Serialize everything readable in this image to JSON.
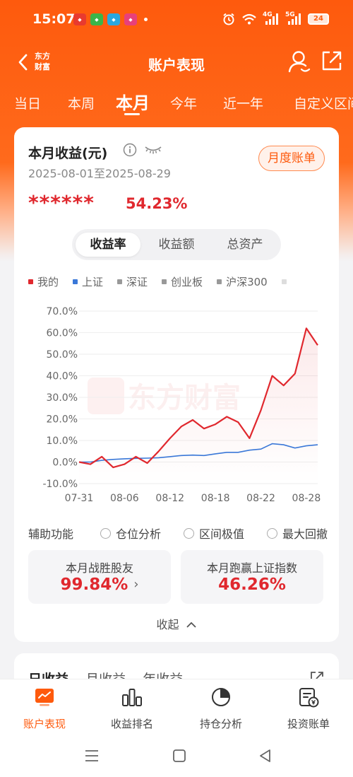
{
  "status_bar": {
    "time": "15:07",
    "network1": "4G",
    "network2": "5G",
    "battery": "24"
  },
  "header": {
    "title": "账户表现",
    "logo_line1": "东方",
    "logo_line2": "财富"
  },
  "tabs": [
    {
      "label": "当日"
    },
    {
      "label": "本周"
    },
    {
      "label": "本月"
    },
    {
      "label": "今年"
    },
    {
      "label": "近一年"
    },
    {
      "label": "自定义区间"
    }
  ],
  "summary": {
    "title": "本月收益(元)",
    "date_range": "2025-08-01至2025-08-29",
    "monthly_bill_button": "月度账单",
    "masked_amount": "******",
    "return_rate": "54.23%"
  },
  "segment": {
    "options": [
      "收益率",
      "收益额",
      "总资产"
    ],
    "selected": "收益率"
  },
  "legend": [
    {
      "name": "我的",
      "color": "#e0282e"
    },
    {
      "name": "上证",
      "color": "#3a78d8"
    },
    {
      "name": "深证",
      "color": "#999999"
    },
    {
      "name": "创业板",
      "color": "#999999"
    },
    {
      "name": "沪深300",
      "color": "#999999"
    }
  ],
  "watermark": "东方财富",
  "chart_data": {
    "type": "line",
    "x": [
      "07-31",
      "08-01",
      "08-04",
      "08-05",
      "08-06",
      "08-07",
      "08-08",
      "08-11",
      "08-12",
      "08-13",
      "08-14",
      "08-15",
      "08-18",
      "08-19",
      "08-20",
      "08-21",
      "08-22",
      "08-25",
      "08-26",
      "08-27",
      "08-28",
      "08-29"
    ],
    "x_tick_labels": [
      "07-31",
      "08-06",
      "08-12",
      "08-18",
      "08-22",
      "08-28"
    ],
    "y_tick_labels": [
      "70.0%",
      "60.0%",
      "50.0%",
      "40.0%",
      "30.0%",
      "20.0%",
      "10.0%",
      "0.0%",
      "-10.0%"
    ],
    "ylim": [
      -10,
      70
    ],
    "grid": true,
    "series": [
      {
        "name": "我的",
        "color": "#e0282e",
        "values": [
          0.0,
          -1.0,
          2.5,
          -2.5,
          -1.0,
          2.5,
          -0.5,
          5.0,
          11.0,
          16.5,
          19.5,
          15.5,
          17.5,
          21.0,
          18.5,
          11.0,
          24.0,
          40.0,
          35.5,
          41.0,
          62.0,
          54.2
        ]
      },
      {
        "name": "上证",
        "color": "#3a78d8",
        "values": [
          0.0,
          0.0,
          0.8,
          1.2,
          1.5,
          1.7,
          1.8,
          2.0,
          2.5,
          3.0,
          3.2,
          3.0,
          3.8,
          4.5,
          4.5,
          5.5,
          6.0,
          8.5,
          8.0,
          6.5,
          7.5,
          8.0
        ]
      }
    ]
  },
  "auxiliary": {
    "label": "辅助功能",
    "options": [
      "仓位分析",
      "区间极值",
      "最大回撤"
    ]
  },
  "stats": [
    {
      "label": "本月战胜股友",
      "value": "99.84%"
    },
    {
      "label": "本月跑赢上证指数",
      "value": "46.26%"
    }
  ],
  "collapse_label": "收起",
  "card2": {
    "tabs": [
      "日收益",
      "月收益",
      "年收益"
    ]
  },
  "bottom_nav": [
    {
      "label": "账户表现",
      "icon": "chart-card-icon",
      "active": true
    },
    {
      "label": "收益排名",
      "icon": "bar-chart-icon",
      "active": false
    },
    {
      "label": "持仓分析",
      "icon": "pie-chart-icon",
      "active": false
    },
    {
      "label": "投资账单",
      "icon": "bill-icon",
      "active": false
    }
  ]
}
